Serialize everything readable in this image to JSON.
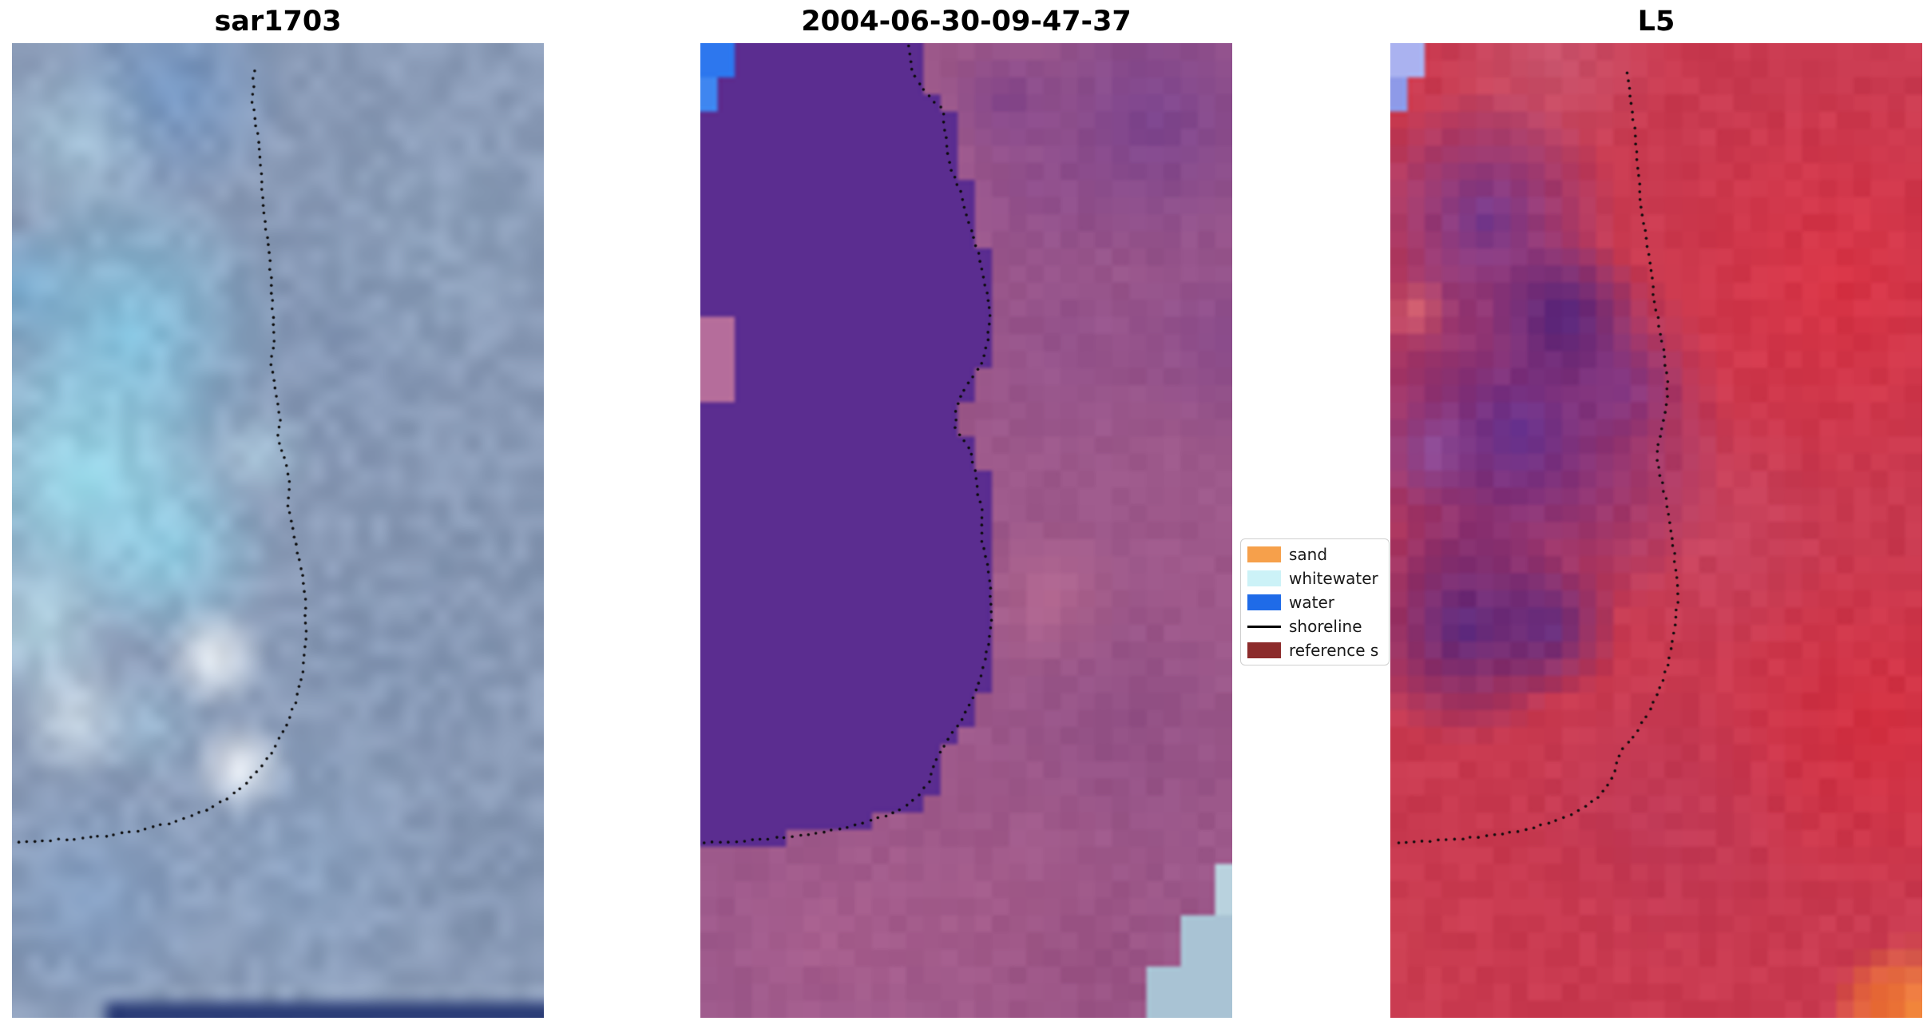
{
  "chart_data": {
    "type": "heatmap",
    "title": "",
    "panels": [
      {
        "title": "sar1703",
        "image": {
          "grid": [
            34,
            62
          ],
          "base": "#8b9cb8",
          "seed": 11,
          "noise": 12,
          "pixelated": false,
          "dot_spacing": 10,
          "blobs": [
            [
              0.3,
              0.05,
              0.22,
              "#6e93c2",
              0.85
            ],
            [
              0.12,
              0.1,
              0.18,
              "#a9cade",
              0.8
            ],
            [
              0.02,
              0.25,
              0.12,
              "#74aad4",
              0.7
            ],
            [
              0.22,
              0.3,
              0.3,
              "#84c8e4",
              0.9
            ],
            [
              0.14,
              0.45,
              0.28,
              "#9adeee",
              0.95
            ],
            [
              0.3,
              0.52,
              0.2,
              "#8fd2e8",
              0.8
            ],
            [
              0.05,
              0.6,
              0.15,
              "#bfe4ef",
              0.8
            ],
            [
              0.47,
              0.42,
              0.1,
              "#b8dcec",
              0.7
            ],
            [
              0.38,
              0.63,
              0.1,
              "#f2f7fa",
              0.95
            ],
            [
              0.43,
              0.745,
              0.095,
              "#ffffff",
              1.0
            ],
            [
              0.12,
              0.69,
              0.13,
              "#dceaf2",
              0.75
            ],
            [
              0.26,
              0.7,
              0.12,
              "#9fc4dc",
              0.6
            ],
            [
              0.6,
              0.3,
              0.3,
              "#7f93b2",
              0.7
            ],
            [
              0.8,
              0.2,
              0.28,
              "#8ea3bd",
              0.7
            ],
            [
              0.88,
              0.5,
              0.3,
              "#8496b2",
              0.6
            ],
            [
              0.7,
              0.65,
              0.25,
              "#7e92b0",
              0.6
            ],
            [
              0.55,
              0.85,
              0.3,
              "#8ba4c4",
              0.7
            ],
            [
              0.15,
              0.88,
              0.25,
              "#7fa0c8",
              0.6
            ],
            [
              0.9,
              0.85,
              0.22,
              "#7d90ad",
              0.6
            ]
          ],
          "rects": [
            [
              0.18,
              0.985,
              0.82,
              0.015,
              "#2e4079"
            ]
          ]
        },
        "shoreline": [
          [
            0.455,
            0.028
          ],
          [
            0.452,
            0.06
          ],
          [
            0.462,
            0.095
          ],
          [
            0.468,
            0.13
          ],
          [
            0.472,
            0.165
          ],
          [
            0.48,
            0.2
          ],
          [
            0.486,
            0.235
          ],
          [
            0.49,
            0.27
          ],
          [
            0.492,
            0.305
          ],
          [
            0.488,
            0.33
          ],
          [
            0.496,
            0.355
          ],
          [
            0.505,
            0.385
          ],
          [
            0.498,
            0.405
          ],
          [
            0.512,
            0.425
          ],
          [
            0.522,
            0.45
          ],
          [
            0.518,
            0.47
          ],
          [
            0.528,
            0.495
          ],
          [
            0.535,
            0.52
          ],
          [
            0.545,
            0.545
          ],
          [
            0.552,
            0.575
          ],
          [
            0.553,
            0.605
          ],
          [
            0.548,
            0.64
          ],
          [
            0.536,
            0.672
          ],
          [
            0.515,
            0.7
          ],
          [
            0.495,
            0.722
          ],
          [
            0.468,
            0.742
          ],
          [
            0.44,
            0.76
          ],
          [
            0.405,
            0.775
          ],
          [
            0.36,
            0.788
          ],
          [
            0.31,
            0.798
          ],
          [
            0.255,
            0.806
          ],
          [
            0.195,
            0.812
          ],
          [
            0.13,
            0.816
          ],
          [
            0.065,
            0.818
          ],
          [
            0.005,
            0.82
          ]
        ]
      },
      {
        "title": "2004-06-30-09-47-37",
        "image": {
          "grid": [
            31,
            57
          ],
          "base": "#9c588a",
          "seed": 22,
          "noise": 5,
          "pixelated": true,
          "dot_spacing": 10,
          "blobs": [
            [
              0.85,
              0.08,
              0.3,
              "#76408e",
              0.85
            ],
            [
              0.57,
              0.06,
              0.12,
              "#7a3f8c",
              0.7
            ],
            [
              0.98,
              0.3,
              0.22,
              "#84478c",
              0.7
            ],
            [
              0.7,
              0.3,
              0.25,
              "#90508c",
              0.7
            ],
            [
              0.66,
              0.57,
              0.16,
              "#b4688f",
              0.85
            ],
            [
              0.8,
              0.7,
              0.25,
              "#8d4c82",
              0.7
            ],
            [
              0.95,
              0.55,
              0.18,
              "#a25a8c",
              0.6
            ],
            [
              0.62,
              0.15,
              0.18,
              "#8a4a8e",
              0.6
            ],
            [
              0.55,
              0.9,
              0.35,
              "#a55c8a",
              0.8
            ],
            [
              0.25,
              0.92,
              0.25,
              "#ab608e",
              0.7
            ],
            [
              0.75,
              0.95,
              0.25,
              "#964f80",
              0.7
            ]
          ],
          "water_fill": {
            "color": "#5b2d90",
            "max_y": 0.85,
            "offset": 0.015
          },
          "rects": [
            [
              0.0,
              0.287,
              0.065,
              0.085,
              "#b56d9b"
            ],
            [
              0.0,
              0.0,
              0.052,
              0.042,
              "#2d77ee"
            ],
            [
              0.0,
              0.042,
              0.026,
              0.036,
              "#3f86f0"
            ],
            [
              0.9,
              0.895,
              0.1,
              0.105,
              "#a9c3d4"
            ],
            [
              0.845,
              0.94,
              0.055,
              0.06,
              "#a9c3d4"
            ],
            [
              0.955,
              0.845,
              0.045,
              0.05,
              "#b9d2de"
            ]
          ]
        },
        "shoreline": [
          [
            0.391,
            0.003
          ],
          [
            0.398,
            0.03
          ],
          [
            0.425,
            0.052
          ],
          [
            0.455,
            0.068
          ],
          [
            0.462,
            0.095
          ],
          [
            0.468,
            0.125
          ],
          [
            0.49,
            0.155
          ],
          [
            0.505,
            0.185
          ],
          [
            0.522,
            0.215
          ],
          [
            0.535,
            0.245
          ],
          [
            0.545,
            0.275
          ],
          [
            0.54,
            0.305
          ],
          [
            0.528,
            0.33
          ],
          [
            0.5,
            0.352
          ],
          [
            0.482,
            0.372
          ],
          [
            0.478,
            0.395
          ],
          [
            0.505,
            0.415
          ],
          [
            0.515,
            0.435
          ],
          [
            0.52,
            0.458
          ],
          [
            0.53,
            0.48
          ],
          [
            0.528,
            0.505
          ],
          [
            0.538,
            0.53
          ],
          [
            0.545,
            0.558
          ],
          [
            0.548,
            0.585
          ],
          [
            0.542,
            0.615
          ],
          [
            0.53,
            0.645
          ],
          [
            0.512,
            0.672
          ],
          [
            0.49,
            0.695
          ],
          [
            0.465,
            0.715
          ],
          [
            0.442,
            0.735
          ],
          [
            0.43,
            0.758
          ],
          [
            0.405,
            0.775
          ],
          [
            0.37,
            0.788
          ],
          [
            0.32,
            0.798
          ],
          [
            0.262,
            0.806
          ],
          [
            0.2,
            0.812
          ],
          [
            0.135,
            0.816
          ],
          [
            0.068,
            0.819
          ],
          [
            0.008,
            0.82
          ]
        ]
      },
      {
        "title": "L5",
        "image": {
          "grid": [
            31,
            57
          ],
          "base": "#c93a50",
          "seed": 33,
          "noise": 6,
          "pixelated": true,
          "dot_spacing": 10,
          "blobs": [
            [
              0.3,
              0.02,
              0.22,
              "#c85a74",
              0.8
            ],
            [
              0.85,
              0.25,
              0.4,
              "#da3344",
              0.9
            ],
            [
              0.92,
              0.7,
              0.35,
              "#d62e3e",
              0.85
            ],
            [
              0.6,
              0.5,
              0.25,
              "#c64a6a",
              0.6
            ],
            [
              0.5,
              0.8,
              0.28,
              "#bc3a5c",
              0.6
            ],
            [
              0.25,
              0.93,
              0.3,
              "#c93a50",
              0.8
            ],
            [
              0.02,
              0.93,
              0.18,
              "#cc4052",
              0.7
            ],
            [
              0.44,
              0.35,
              0.12,
              "#7e4098",
              0.6
            ],
            [
              0.24,
              0.4,
              0.4,
              "#5e2f90",
              0.95
            ],
            [
              0.18,
              0.18,
              0.25,
              "#6b3a96",
              0.9
            ],
            [
              0.14,
              0.6,
              0.22,
              "#4c2684",
              0.9
            ],
            [
              0.33,
              0.28,
              0.15,
              "#452180",
              0.85
            ],
            [
              0.3,
              0.6,
              0.14,
              "#502a88",
              0.8
            ],
            [
              0.08,
              0.42,
              0.1,
              "#8a5ab0",
              0.6
            ],
            [
              0.05,
              0.275,
              0.07,
              "#d4606e",
              0.95
            ],
            [
              0.99,
              1.0,
              0.16,
              "#f69f3d",
              1.0
            ],
            [
              0.93,
              0.985,
              0.1,
              "#ee6a32",
              0.85
            ]
          ],
          "rects": [
            [
              0.0,
              0.0,
              0.058,
              0.03,
              "#aab2f0"
            ],
            [
              0.0,
              0.03,
              0.045,
              0.033,
              "#8e9ae8"
            ]
          ]
        },
        "shoreline": [
          [
            0.445,
            0.03
          ],
          [
            0.452,
            0.06
          ],
          [
            0.46,
            0.092
          ],
          [
            0.465,
            0.125
          ],
          [
            0.47,
            0.158
          ],
          [
            0.478,
            0.192
          ],
          [
            0.488,
            0.225
          ],
          [
            0.495,
            0.258
          ],
          [
            0.505,
            0.29
          ],
          [
            0.515,
            0.32
          ],
          [
            0.522,
            0.35
          ],
          [
            0.518,
            0.378
          ],
          [
            0.508,
            0.4
          ],
          [
            0.5,
            0.422
          ],
          [
            0.508,
            0.445
          ],
          [
            0.518,
            0.468
          ],
          [
            0.525,
            0.492
          ],
          [
            0.532,
            0.518
          ],
          [
            0.538,
            0.545
          ],
          [
            0.54,
            0.572
          ],
          [
            0.535,
            0.6
          ],
          [
            0.525,
            0.63
          ],
          [
            0.51,
            0.658
          ],
          [
            0.488,
            0.685
          ],
          [
            0.462,
            0.708
          ],
          [
            0.432,
            0.728
          ],
          [
            0.42,
            0.752
          ],
          [
            0.395,
            0.772
          ],
          [
            0.36,
            0.786
          ],
          [
            0.315,
            0.797
          ],
          [
            0.262,
            0.806
          ],
          [
            0.202,
            0.812
          ],
          [
            0.138,
            0.816
          ],
          [
            0.07,
            0.819
          ],
          [
            0.01,
            0.821
          ]
        ]
      }
    ],
    "legend": {
      "items": [
        {
          "label": "sand",
          "type": "patch",
          "color": "#f6a04b"
        },
        {
          "label": "whitewater",
          "type": "patch",
          "color": "#ccf2f7"
        },
        {
          "label": "water",
          "type": "patch",
          "color": "#1f6be8"
        },
        {
          "label": "shoreline",
          "type": "line",
          "color": "#000000"
        },
        {
          "label": "reference s",
          "type": "patch",
          "color": "#8c2b2b"
        }
      ]
    },
    "shoreline_dot_color": "#0b0b0b"
  }
}
